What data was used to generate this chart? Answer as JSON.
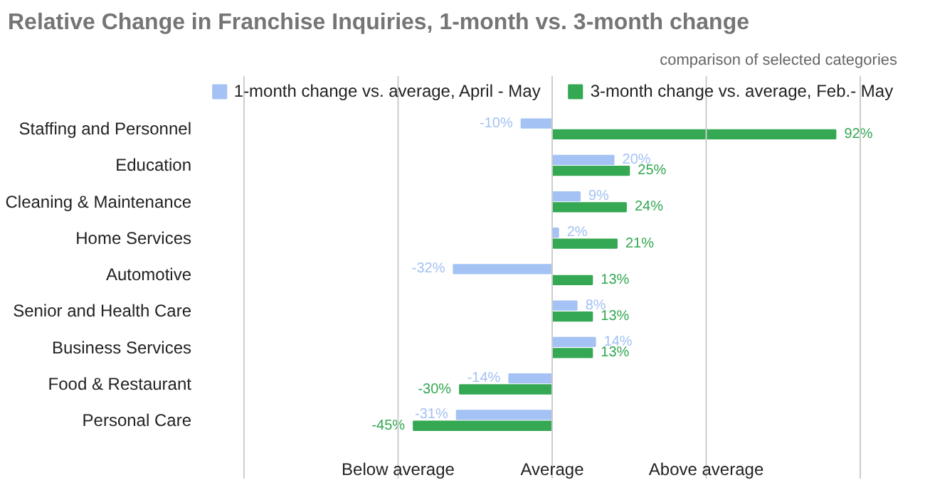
{
  "chart_data": {
    "type": "bar",
    "orientation": "horizontal",
    "title": "Relative Change in Franchise Inquiries, 1-month vs. 3-month change",
    "subtitle": "comparison of selected categories",
    "categories": [
      "Staffing and Personnel",
      "Education",
      "Cleaning & Maintenance",
      "Home Services",
      "Automotive",
      "Senior and Health Care",
      "Business Services",
      "Food & Restaurant",
      "Personal Care"
    ],
    "series": [
      {
        "name": "1-month change vs. average, April - May",
        "color": "#a4c2f4",
        "values": [
          -10,
          20,
          9,
          2,
          -32,
          8,
          14,
          -14,
          -31
        ],
        "value_labels": [
          "-10%",
          "20%",
          "9%",
          "2%",
          "-32%",
          "8%",
          "14%",
          "-14%",
          "-31%"
        ]
      },
      {
        "name": "3-month change vs. average, Feb.- May",
        "color": "#34a853",
        "values": [
          92,
          25,
          24,
          21,
          13,
          13,
          13,
          -30,
          -45
        ],
        "value_labels": [
          "92%",
          "25%",
          "24%",
          "21%",
          "13%",
          "13%",
          "13%",
          "-30%",
          "-45%"
        ]
      }
    ],
    "ref_lines": [
      {
        "axis": "x",
        "value": -100,
        "color": "#cccccc"
      },
      {
        "axis": "x",
        "value": -50,
        "color": "#cccccc"
      },
      {
        "axis": "x",
        "value": 0,
        "color": "#cccccc"
      },
      {
        "axis": "x",
        "value": 50,
        "color": "#cccccc"
      },
      {
        "axis": "x",
        "value": 100,
        "color": "#cccccc"
      }
    ],
    "annotations": [
      "Below average",
      "Average",
      "Above average"
    ],
    "legend": "top"
  }
}
